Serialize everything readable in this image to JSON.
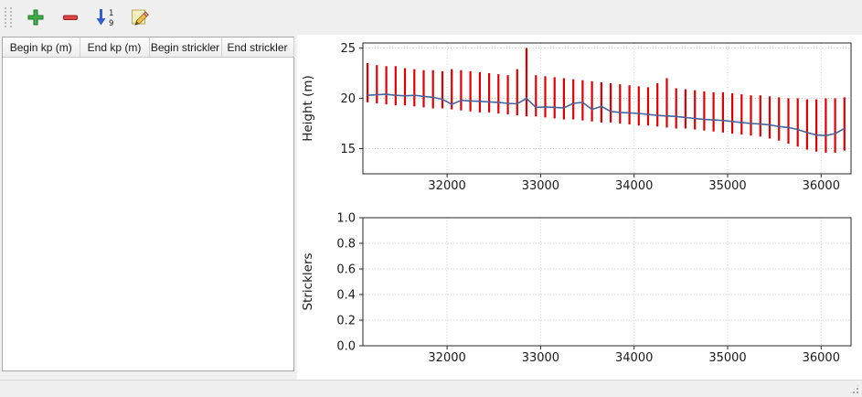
{
  "window": {
    "background": "#f0f0f0",
    "figure_background": "#ffffff"
  },
  "toolbar": {
    "buttons": [
      {
        "name": "add-row",
        "icon": "plus-icon",
        "color": "#3fae49"
      },
      {
        "name": "remove-row",
        "icon": "minus-icon",
        "color": "#e04444"
      },
      {
        "name": "sort-rows",
        "icon": "sort-numeric-icon",
        "color": "#2f5fd0"
      },
      {
        "name": "edit-row",
        "icon": "edit-pencil-icon",
        "color": "#f0c040"
      }
    ]
  },
  "table": {
    "columns": [
      "Begin kp (m)",
      "End kp (m)",
      "Begin strickler",
      "End strickler"
    ],
    "rows": []
  },
  "chart_data": [
    {
      "type": "line",
      "title": "",
      "xlabel": "",
      "ylabel": "Height (m)",
      "xlim": [
        31100,
        36320
      ],
      "ylim": [
        12.5,
        25.5
      ],
      "xticks": [
        32000,
        33000,
        34000,
        35000,
        36000
      ],
      "xtick_labels": [
        "32000",
        "33000",
        "34000",
        "35000",
        "36000"
      ],
      "yticks": [
        15,
        20,
        25
      ],
      "ytick_labels": [
        "15",
        "20",
        "25"
      ],
      "grid": "dotted",
      "legend": "none",
      "series": [
        {
          "name": "cross-section-range",
          "style": "vertical-bars",
          "color": "#e00000",
          "x": [
            31150,
            31250,
            31350,
            31450,
            31550,
            31650,
            31750,
            31850,
            31950,
            32050,
            32150,
            32250,
            32350,
            32450,
            32550,
            32650,
            32750,
            32850,
            32950,
            33050,
            33150,
            33250,
            33350,
            33450,
            33550,
            33650,
            33750,
            33850,
            33950,
            34050,
            34150,
            34250,
            34350,
            34450,
            34550,
            34650,
            34750,
            34850,
            34950,
            35050,
            35150,
            35250,
            35350,
            35450,
            35550,
            35650,
            35750,
            35850,
            35950,
            36050,
            36150,
            36250
          ],
          "ymin": [
            19.6,
            19.5,
            19.4,
            19.3,
            19.3,
            19.2,
            19.1,
            19.0,
            19.0,
            18.9,
            18.8,
            18.7,
            18.6,
            18.6,
            18.5,
            18.4,
            18.3,
            18.2,
            18.2,
            18.1,
            18.0,
            17.9,
            17.9,
            17.8,
            17.7,
            17.6,
            17.6,
            17.5,
            17.4,
            17.3,
            17.3,
            17.2,
            17.1,
            17.0,
            17.0,
            16.9,
            16.8,
            16.7,
            16.6,
            16.5,
            16.4,
            16.3,
            16.2,
            16.0,
            15.8,
            15.5,
            15.2,
            14.9,
            14.7,
            14.6,
            14.6,
            14.8
          ],
          "ymax": [
            23.5,
            23.3,
            23.2,
            23.2,
            23.0,
            22.9,
            22.8,
            22.8,
            22.7,
            22.9,
            22.8,
            22.7,
            22.6,
            22.5,
            22.4,
            22.3,
            22.9,
            25.0,
            22.3,
            22.2,
            22.1,
            22.0,
            21.9,
            21.8,
            21.7,
            21.6,
            21.5,
            21.4,
            21.3,
            21.2,
            21.1,
            21.5,
            22.0,
            21.0,
            20.9,
            20.8,
            20.7,
            20.6,
            20.6,
            20.5,
            20.4,
            20.3,
            20.3,
            20.2,
            20.1,
            20.0,
            20.0,
            19.9,
            19.9,
            20.0,
            20.0,
            20.1
          ]
        },
        {
          "name": "mean-level-line",
          "style": "line",
          "color": "#46659f",
          "x": [
            31150,
            31250,
            31350,
            31450,
            31550,
            31650,
            31750,
            31850,
            31950,
            32050,
            32150,
            32250,
            32350,
            32450,
            32550,
            32650,
            32750,
            32850,
            32950,
            33050,
            33150,
            33250,
            33350,
            33450,
            33550,
            33650,
            33750,
            33850,
            33950,
            34050,
            34150,
            34250,
            34350,
            34450,
            34550,
            34650,
            34750,
            34850,
            34950,
            35050,
            35150,
            35250,
            35350,
            35450,
            35550,
            35650,
            35750,
            35850,
            35950,
            36050,
            36150,
            36250
          ],
          "y": [
            20.3,
            20.35,
            20.4,
            20.3,
            20.25,
            20.3,
            20.2,
            20.1,
            19.9,
            19.4,
            19.8,
            19.75,
            19.7,
            19.65,
            19.6,
            19.5,
            19.45,
            20.0,
            19.1,
            19.15,
            19.1,
            19.05,
            19.5,
            19.6,
            18.9,
            19.2,
            18.7,
            18.6,
            18.55,
            18.5,
            18.4,
            18.3,
            18.25,
            18.2,
            18.1,
            18.0,
            17.9,
            17.85,
            17.8,
            17.7,
            17.6,
            17.5,
            17.45,
            17.35,
            17.2,
            17.1,
            16.9,
            16.6,
            16.35,
            16.3,
            16.5,
            17.0
          ]
        }
      ]
    },
    {
      "type": "line",
      "title": "",
      "xlabel": "",
      "ylabel": "Stricklers",
      "xlim": [
        31100,
        36320
      ],
      "ylim": [
        0,
        1
      ],
      "xticks": [
        32000,
        33000,
        34000,
        35000,
        36000
      ],
      "xtick_labels": [
        "32000",
        "33000",
        "34000",
        "35000",
        "36000"
      ],
      "yticks": [
        0,
        0.2,
        0.4,
        0.6,
        0.8,
        1.0
      ],
      "ytick_labels": [
        "0.0",
        "0.2",
        "0.4",
        "0.6",
        "0.8",
        "1.0"
      ],
      "grid": "dotted",
      "legend": "none",
      "series": []
    }
  ]
}
